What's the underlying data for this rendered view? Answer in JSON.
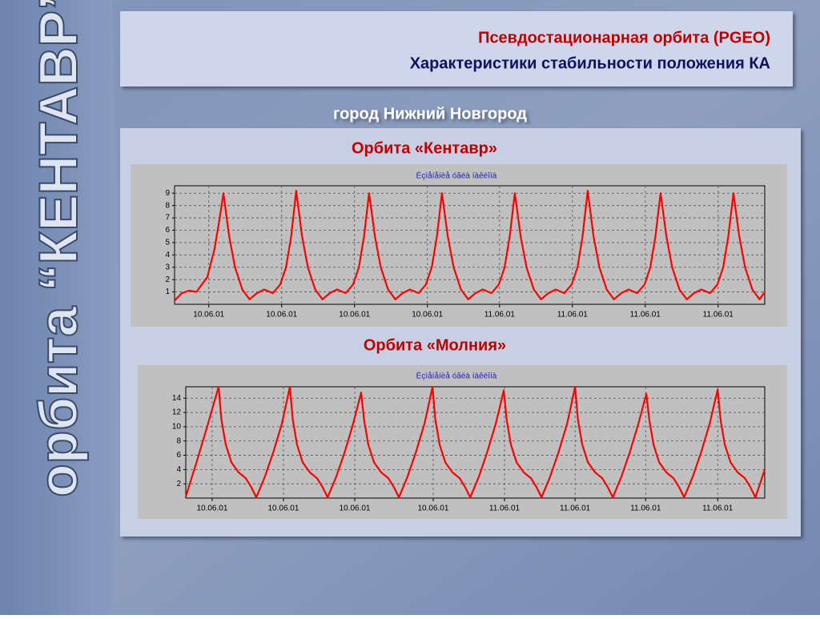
{
  "slide": {
    "sidebar": "орбита “КЕНТАВР”",
    "title": "Псевдостационарная орбита (PGEO)",
    "subtitle": "Характеристики стабильности положения КА",
    "city": "город  Нижний Новгород"
  },
  "chart_data": [
    {
      "type": "line",
      "caption": "Орбита «Кентавр»",
      "title": "Èçìåíåíèå óãëà íàêëîíà",
      "color": "#ff0000",
      "grid": true,
      "x": [
        0,
        0.1,
        0.2,
        0.3,
        0.45,
        0.55,
        0.62,
        0.67,
        0.75,
        0.83,
        0.93,
        1.03,
        1.13,
        1.23,
        1.35,
        1.45,
        1.53,
        1.6,
        1.67,
        1.75,
        1.83,
        1.93,
        2.03,
        2.13,
        2.23,
        2.35,
        2.45,
        2.53,
        2.6,
        2.67,
        2.75,
        2.83,
        2.93,
        3.03,
        3.13,
        3.23,
        3.35,
        3.45,
        3.53,
        3.6,
        3.67,
        3.75,
        3.83,
        3.93,
        4.03,
        4.13,
        4.23,
        4.35,
        4.45,
        4.53,
        4.6,
        4.67,
        4.75,
        4.83,
        4.93,
        5.03,
        5.13,
        5.23,
        5.35,
        5.45,
        5.53,
        5.6,
        5.67,
        5.75,
        5.83,
        5.93,
        6.03,
        6.13,
        6.23,
        6.35,
        6.45,
        6.53,
        6.6,
        6.67,
        6.75,
        6.83,
        6.93,
        7.03,
        7.13,
        7.23,
        7.35,
        7.45,
        7.53,
        7.6,
        7.67,
        7.75,
        7.83,
        7.93,
        8.03,
        8.1
      ],
      "values": [
        0.3,
        0.9,
        1.1,
        1.0,
        2.2,
        4.5,
        7,
        9,
        5.5,
        3,
        1.2,
        0.4,
        0.9,
        1.2,
        0.9,
        1.6,
        3,
        5.5,
        9.2,
        5.5,
        3,
        1.2,
        0.4,
        0.9,
        1.2,
        0.9,
        1.6,
        3,
        5.5,
        9,
        5.5,
        3,
        1.2,
        0.4,
        0.9,
        1.2,
        0.9,
        1.6,
        3,
        5.5,
        9,
        5.5,
        3,
        1.2,
        0.4,
        0.9,
        1.2,
        0.9,
        1.6,
        3,
        5.5,
        9,
        5.5,
        3,
        1.2,
        0.4,
        0.9,
        1.2,
        0.9,
        1.6,
        3,
        5.5,
        9.2,
        5.5,
        3,
        1.2,
        0.4,
        0.9,
        1.2,
        0.9,
        1.6,
        3,
        5.5,
        9,
        5.5,
        3,
        1.2,
        0.4,
        0.9,
        1.2,
        0.9,
        1.6,
        3,
        5.5,
        9,
        5.5,
        3,
        1.2,
        0.4,
        1.0
      ],
      "xlim": [
        0,
        8.1
      ],
      "ylim": [
        0,
        9.6
      ],
      "xticks": [
        {
          "value": 0.47,
          "label": "10.06.01"
        },
        {
          "value": 1.47,
          "label": "10.06.01"
        },
        {
          "value": 2.47,
          "label": "10.06.01"
        },
        {
          "value": 3.47,
          "label": "10.06.01"
        },
        {
          "value": 4.46,
          "label": "11.06.01"
        },
        {
          "value": 5.46,
          "label": "11.06.01"
        },
        {
          "value": 6.46,
          "label": "11.06.01"
        },
        {
          "value": 7.46,
          "label": "11.06.01"
        }
      ],
      "yticks": [
        1,
        2,
        3,
        4,
        5,
        6,
        7,
        8,
        9
      ]
    },
    {
      "type": "line",
      "caption": "Орбита «Молния»",
      "title": "Èçìåíåíèå óãëà íàêëîíà",
      "color": "#ff0000",
      "grid": true,
      "x": [
        0,
        0.15,
        0.3,
        0.46,
        0.5,
        0.56,
        0.64,
        0.74,
        0.84,
        0.92,
        0.99,
        1.11,
        1.23,
        1.35,
        1.46,
        1.5,
        1.56,
        1.64,
        1.74,
        1.84,
        1.92,
        1.99,
        2.11,
        2.23,
        2.35,
        2.46,
        2.5,
        2.56,
        2.64,
        2.74,
        2.84,
        2.92,
        2.99,
        3.11,
        3.23,
        3.35,
        3.46,
        3.5,
        3.56,
        3.64,
        3.74,
        3.84,
        3.92,
        3.99,
        4.11,
        4.23,
        4.35,
        4.46,
        4.5,
        4.56,
        4.64,
        4.74,
        4.84,
        4.92,
        4.99,
        5.11,
        5.23,
        5.35,
        5.46,
        5.5,
        5.56,
        5.64,
        5.74,
        5.84,
        5.92,
        5.99,
        6.11,
        6.23,
        6.35,
        6.46,
        6.5,
        6.56,
        6.64,
        6.74,
        6.84,
        6.92,
        6.99,
        7.11,
        7.23,
        7.35,
        7.46,
        7.5,
        7.56,
        7.64,
        7.74,
        7.84,
        7.92,
        7.99,
        8.12
      ],
      "values": [
        0.2,
        5,
        10,
        15.6,
        11,
        7.5,
        5,
        3.6,
        2.8,
        1.5,
        0.1,
        3,
        6.5,
        10.5,
        15.6,
        11,
        7.5,
        5,
        3.6,
        2.8,
        1.5,
        0.1,
        3,
        6.5,
        10.5,
        14.8,
        11,
        7.5,
        5,
        3.6,
        2.8,
        1.5,
        0.1,
        3,
        6.5,
        10.5,
        15.6,
        11,
        7.5,
        5,
        3.6,
        2.8,
        1.5,
        0.1,
        3,
        6.5,
        10.5,
        15.1,
        11,
        7.5,
        5,
        3.6,
        2.8,
        1.5,
        0.1,
        3,
        6.5,
        10.5,
        15.6,
        11,
        7.5,
        5,
        3.6,
        2.8,
        1.5,
        0.1,
        3,
        6.5,
        10.5,
        14.6,
        11,
        7.5,
        5,
        3.6,
        2.8,
        1.5,
        0.1,
        3,
        6.5,
        10.5,
        15.2,
        11,
        7.5,
        5,
        3.6,
        2.8,
        1.5,
        0.1,
        4
      ],
      "xlim": [
        0,
        8.12
      ],
      "ylim": [
        0,
        15.6
      ],
      "xticks": [
        {
          "value": 0.37,
          "label": "10.06.01"
        },
        {
          "value": 1.37,
          "label": "10.06.01"
        },
        {
          "value": 2.37,
          "label": "10.06.01"
        },
        {
          "value": 3.47,
          "label": "10.06.01"
        },
        {
          "value": 4.47,
          "label": "11.06.01"
        },
        {
          "value": 5.46,
          "label": "11.06.01"
        },
        {
          "value": 6.45,
          "label": "11.06.01"
        },
        {
          "value": 7.46,
          "label": "11.06.01"
        }
      ],
      "yticks": [
        2,
        4,
        6,
        8,
        10,
        12,
        14
      ]
    }
  ]
}
